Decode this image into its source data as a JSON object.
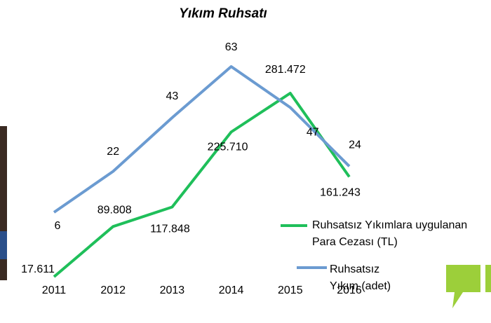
{
  "chart_data": {
    "type": "line",
    "title": "Yıkım Ruhsatı",
    "categories": [
      "2011",
      "2012",
      "2013",
      "2014",
      "2015",
      "2016"
    ],
    "series": [
      {
        "name": "Ruhsatsız Yıkımlara uygulanan Para Cezası (TL)",
        "color": "#1fbf5a",
        "values": [
          17611,
          89808,
          117848,
          225710,
          281472,
          161243
        ],
        "value_labels": [
          "17.611",
          "89.808",
          "117.848",
          "225.710",
          "281.472",
          "161.243"
        ]
      },
      {
        "name": "Ruhsatsız Yıkım (adet)",
        "color": "#6b9bd1",
        "axis": "y2",
        "values": [
          6,
          22,
          43,
          63,
          47,
          24
        ]
      }
    ]
  }
}
